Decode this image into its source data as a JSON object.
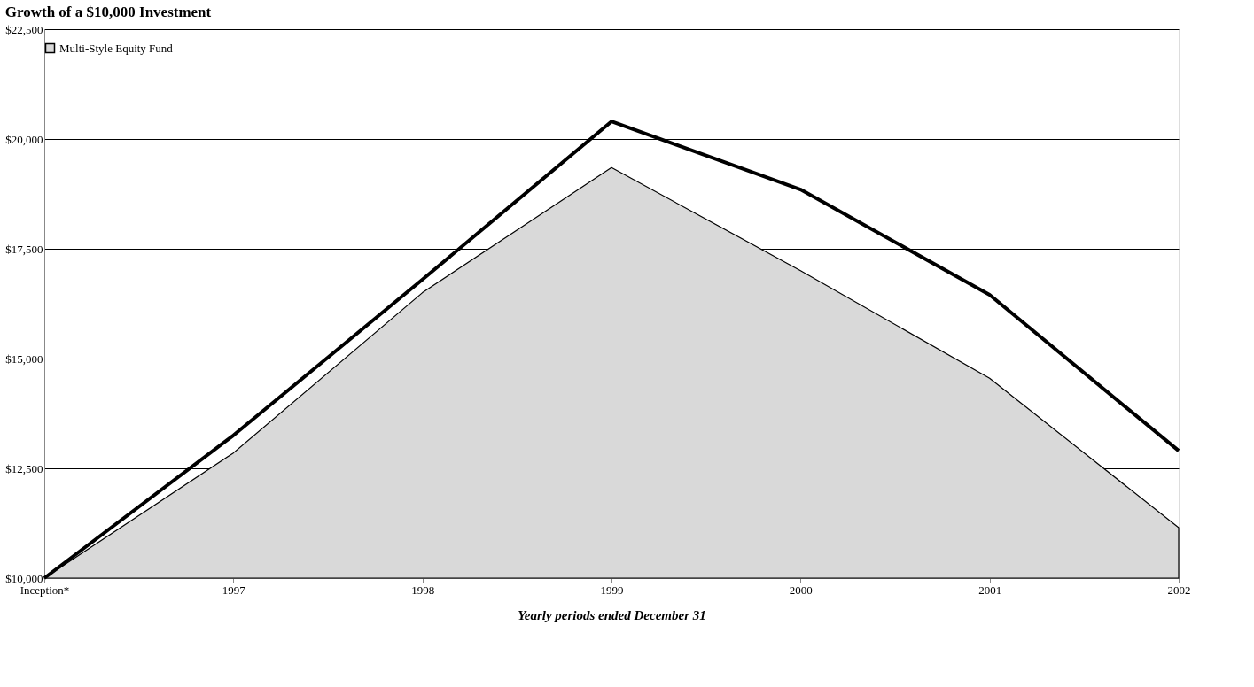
{
  "chart_data": {
    "type": "area",
    "title": "Growth of a $10,000 Investment",
    "xlabel": "Yearly periods ended December 31",
    "categories": [
      "Inception*",
      "1997",
      "1998",
      "1999",
      "2000",
      "2001",
      "2002"
    ],
    "series": [
      {
        "name": "Multi-Style Equity Fund",
        "color": "#d9d9d9",
        "values": [
          10000,
          12850,
          16500,
          19350,
          17000,
          14550,
          11150
        ]
      },
      {
        "type": "line",
        "color": "#000000",
        "values": [
          10000,
          13250,
          16800,
          20400,
          18850,
          16450,
          12900
        ]
      }
    ],
    "ylim": [
      10000,
      22500
    ],
    "yticks": [
      {
        "value": 10000,
        "label": "$10,000"
      },
      {
        "value": 12500,
        "label": "$12,500"
      },
      {
        "value": 15000,
        "label": "$15,000"
      },
      {
        "value": 17500,
        "label": "$17,500"
      },
      {
        "value": 20000,
        "label": "$20,000"
      },
      {
        "value": 22500,
        "label": "$22,500"
      }
    ],
    "grid": "y",
    "legend": "top"
  }
}
